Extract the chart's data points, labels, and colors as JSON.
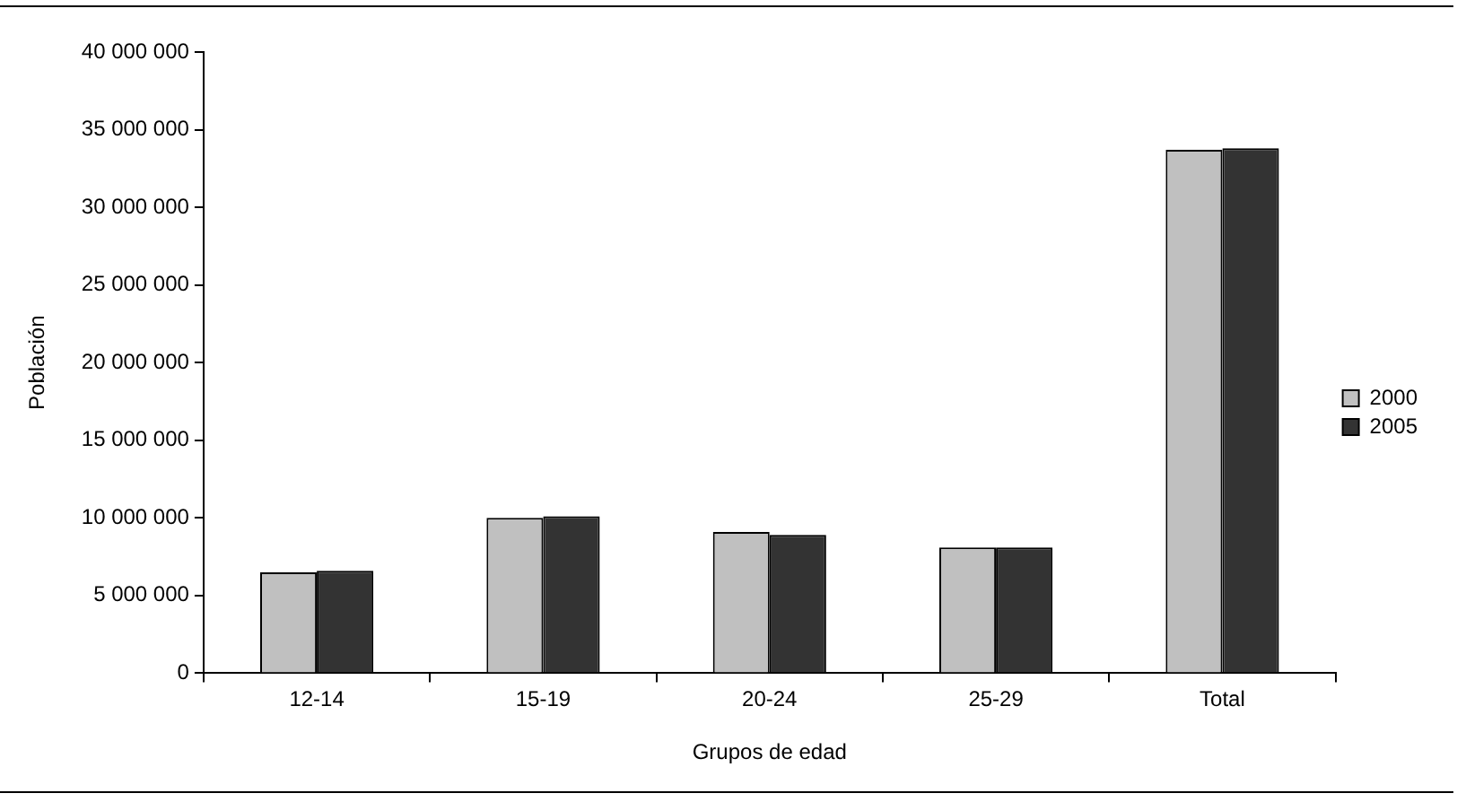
{
  "chart_data": {
    "type": "bar",
    "xlabel": "Grupos de edad",
    "ylabel": "Población",
    "categories": [
      "12-14",
      "15-19",
      "20-24",
      "25-29",
      "Total"
    ],
    "series": [
      {
        "name": "2000",
        "color": "#c0c0c0",
        "values": [
          6500000,
          10000000,
          9100000,
          8100000,
          33700000
        ]
      },
      {
        "name": "2005",
        "color": "#333333",
        "values": [
          6600000,
          10100000,
          8900000,
          8100000,
          33800000
        ]
      }
    ],
    "ylim": [
      0,
      40000000
    ],
    "yticks": [
      0,
      5000000,
      10000000,
      15000000,
      20000000,
      25000000,
      30000000,
      35000000,
      40000000
    ],
    "grid": false,
    "legend": "right"
  }
}
